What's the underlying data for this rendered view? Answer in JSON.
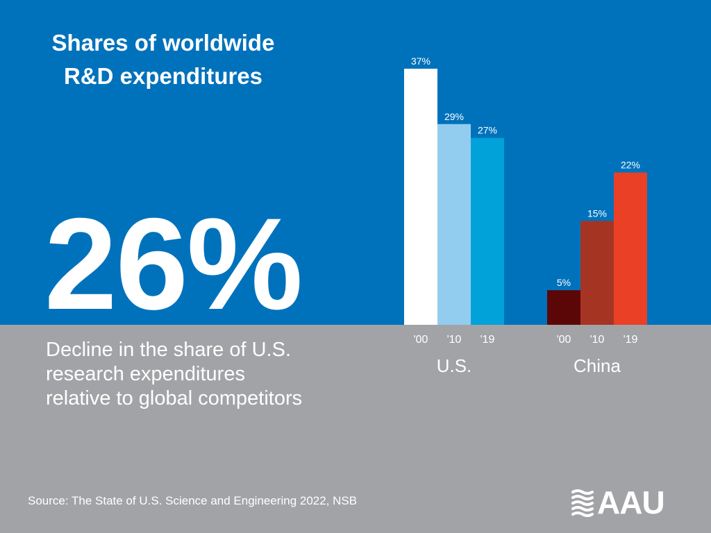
{
  "title": {
    "line1": "Shares of worldwide",
    "line2": "R&D expenditures"
  },
  "headline_stat": "26%",
  "description": {
    "line1": "Decline in the share of U.S.",
    "line2": "research expenditures",
    "line3": "relative to global competitors"
  },
  "source": "Source: The State of U.S. Science and Engineering 2022, NSB",
  "logo": {
    "text": "AAU"
  },
  "colors": {
    "top_background": "#0072bc",
    "bottom_background": "#a2a3a6",
    "text": "#ffffff"
  },
  "chart_data": {
    "type": "bar",
    "title": "Shares of worldwide R&D expenditures",
    "unit": "%",
    "ylim": [
      0,
      37
    ],
    "groups": [
      {
        "name": "U.S.",
        "bars": [
          {
            "year": "'00",
            "value": 37,
            "label": "37%",
            "color": "#ffffff"
          },
          {
            "year": "'10",
            "value": 29,
            "label": "29%",
            "color": "#92cdef"
          },
          {
            "year": "'19",
            "value": 27,
            "label": "27%",
            "color": "#00a2d9"
          }
        ]
      },
      {
        "name": "China",
        "bars": [
          {
            "year": "'00",
            "value": 5,
            "label": "5%",
            "color": "#5b0707"
          },
          {
            "year": "'10",
            "value": 15,
            "label": "15%",
            "color": "#a63423"
          },
          {
            "year": "'19",
            "value": 22,
            "label": "22%",
            "color": "#ea4026"
          }
        ]
      }
    ]
  }
}
